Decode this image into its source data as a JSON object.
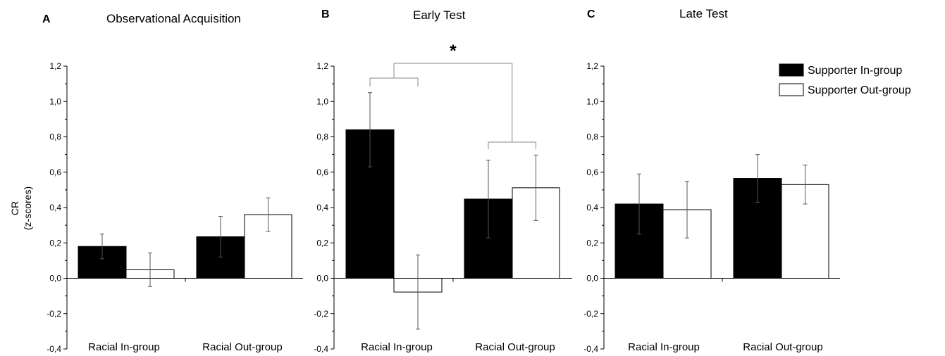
{
  "figure": {
    "y_axis_label_line1": "CR",
    "y_axis_label_line2": "(z-scores)",
    "colors": {
      "in_group": "#000000",
      "out_group": "#ffffff",
      "axis": "#000000",
      "bracket": "#888888"
    },
    "legend": {
      "placement": "top-right",
      "items": [
        {
          "label": "Supporter In-group",
          "color": "#000000"
        },
        {
          "label": "Supporter Out-group",
          "color": "#ffffff"
        }
      ]
    },
    "significance": {
      "panel": "B",
      "label": "*",
      "left_group": "Racial In-group",
      "right_group": "Racial Out-group"
    }
  },
  "chart_data": [
    {
      "type": "bar",
      "letter": "A",
      "title": "Observational Acquisition",
      "categories": [
        "Racial In-group",
        "Racial Out-group"
      ],
      "ylim": [
        -0.4,
        1.2
      ],
      "yticks": [
        "-0,4",
        "-0,2",
        "0,0",
        "0,2",
        "0,4",
        "0,6",
        "0,8",
        "1,0",
        "1,2"
      ],
      "series": [
        {
          "name": "Supporter In-group",
          "values": [
            0.18,
            0.235
          ],
          "errors": [
            0.07,
            0.115
          ]
        },
        {
          "name": "Supporter Out-group",
          "values": [
            0.048,
            0.36
          ],
          "errors": [
            0.095,
            0.095
          ]
        }
      ]
    },
    {
      "type": "bar",
      "letter": "B",
      "title": "Early Test",
      "categories": [
        "Racial In-group",
        "Racial Out-group"
      ],
      "ylim": [
        -0.4,
        1.2
      ],
      "yticks": [
        "-0,4",
        "-0,2",
        "0,0",
        "0,2",
        "0,4",
        "0,6",
        "0,8",
        "1,0",
        "1,2"
      ],
      "series": [
        {
          "name": "Supporter In-group",
          "values": [
            0.84,
            0.448
          ],
          "errors": [
            0.21,
            0.22
          ]
        },
        {
          "name": "Supporter Out-group",
          "values": [
            -0.078,
            0.512
          ],
          "errors": [
            0.21,
            0.185
          ]
        }
      ]
    },
    {
      "type": "bar",
      "letter": "C",
      "title": "Late Test",
      "categories": [
        "Racial In-group",
        "Racial Out-group"
      ],
      "ylim": [
        -0.4,
        1.2
      ],
      "yticks": [
        "-0,4",
        "-0,2",
        "0,0",
        "0,2",
        "0,4",
        "0,6",
        "0,8",
        "1,0",
        "1,2"
      ],
      "series": [
        {
          "name": "Supporter In-group",
          "values": [
            0.42,
            0.565
          ],
          "errors": [
            0.17,
            0.135
          ]
        },
        {
          "name": "Supporter Out-group",
          "values": [
            0.388,
            0.53
          ],
          "errors": [
            0.16,
            0.11
          ]
        }
      ]
    }
  ]
}
